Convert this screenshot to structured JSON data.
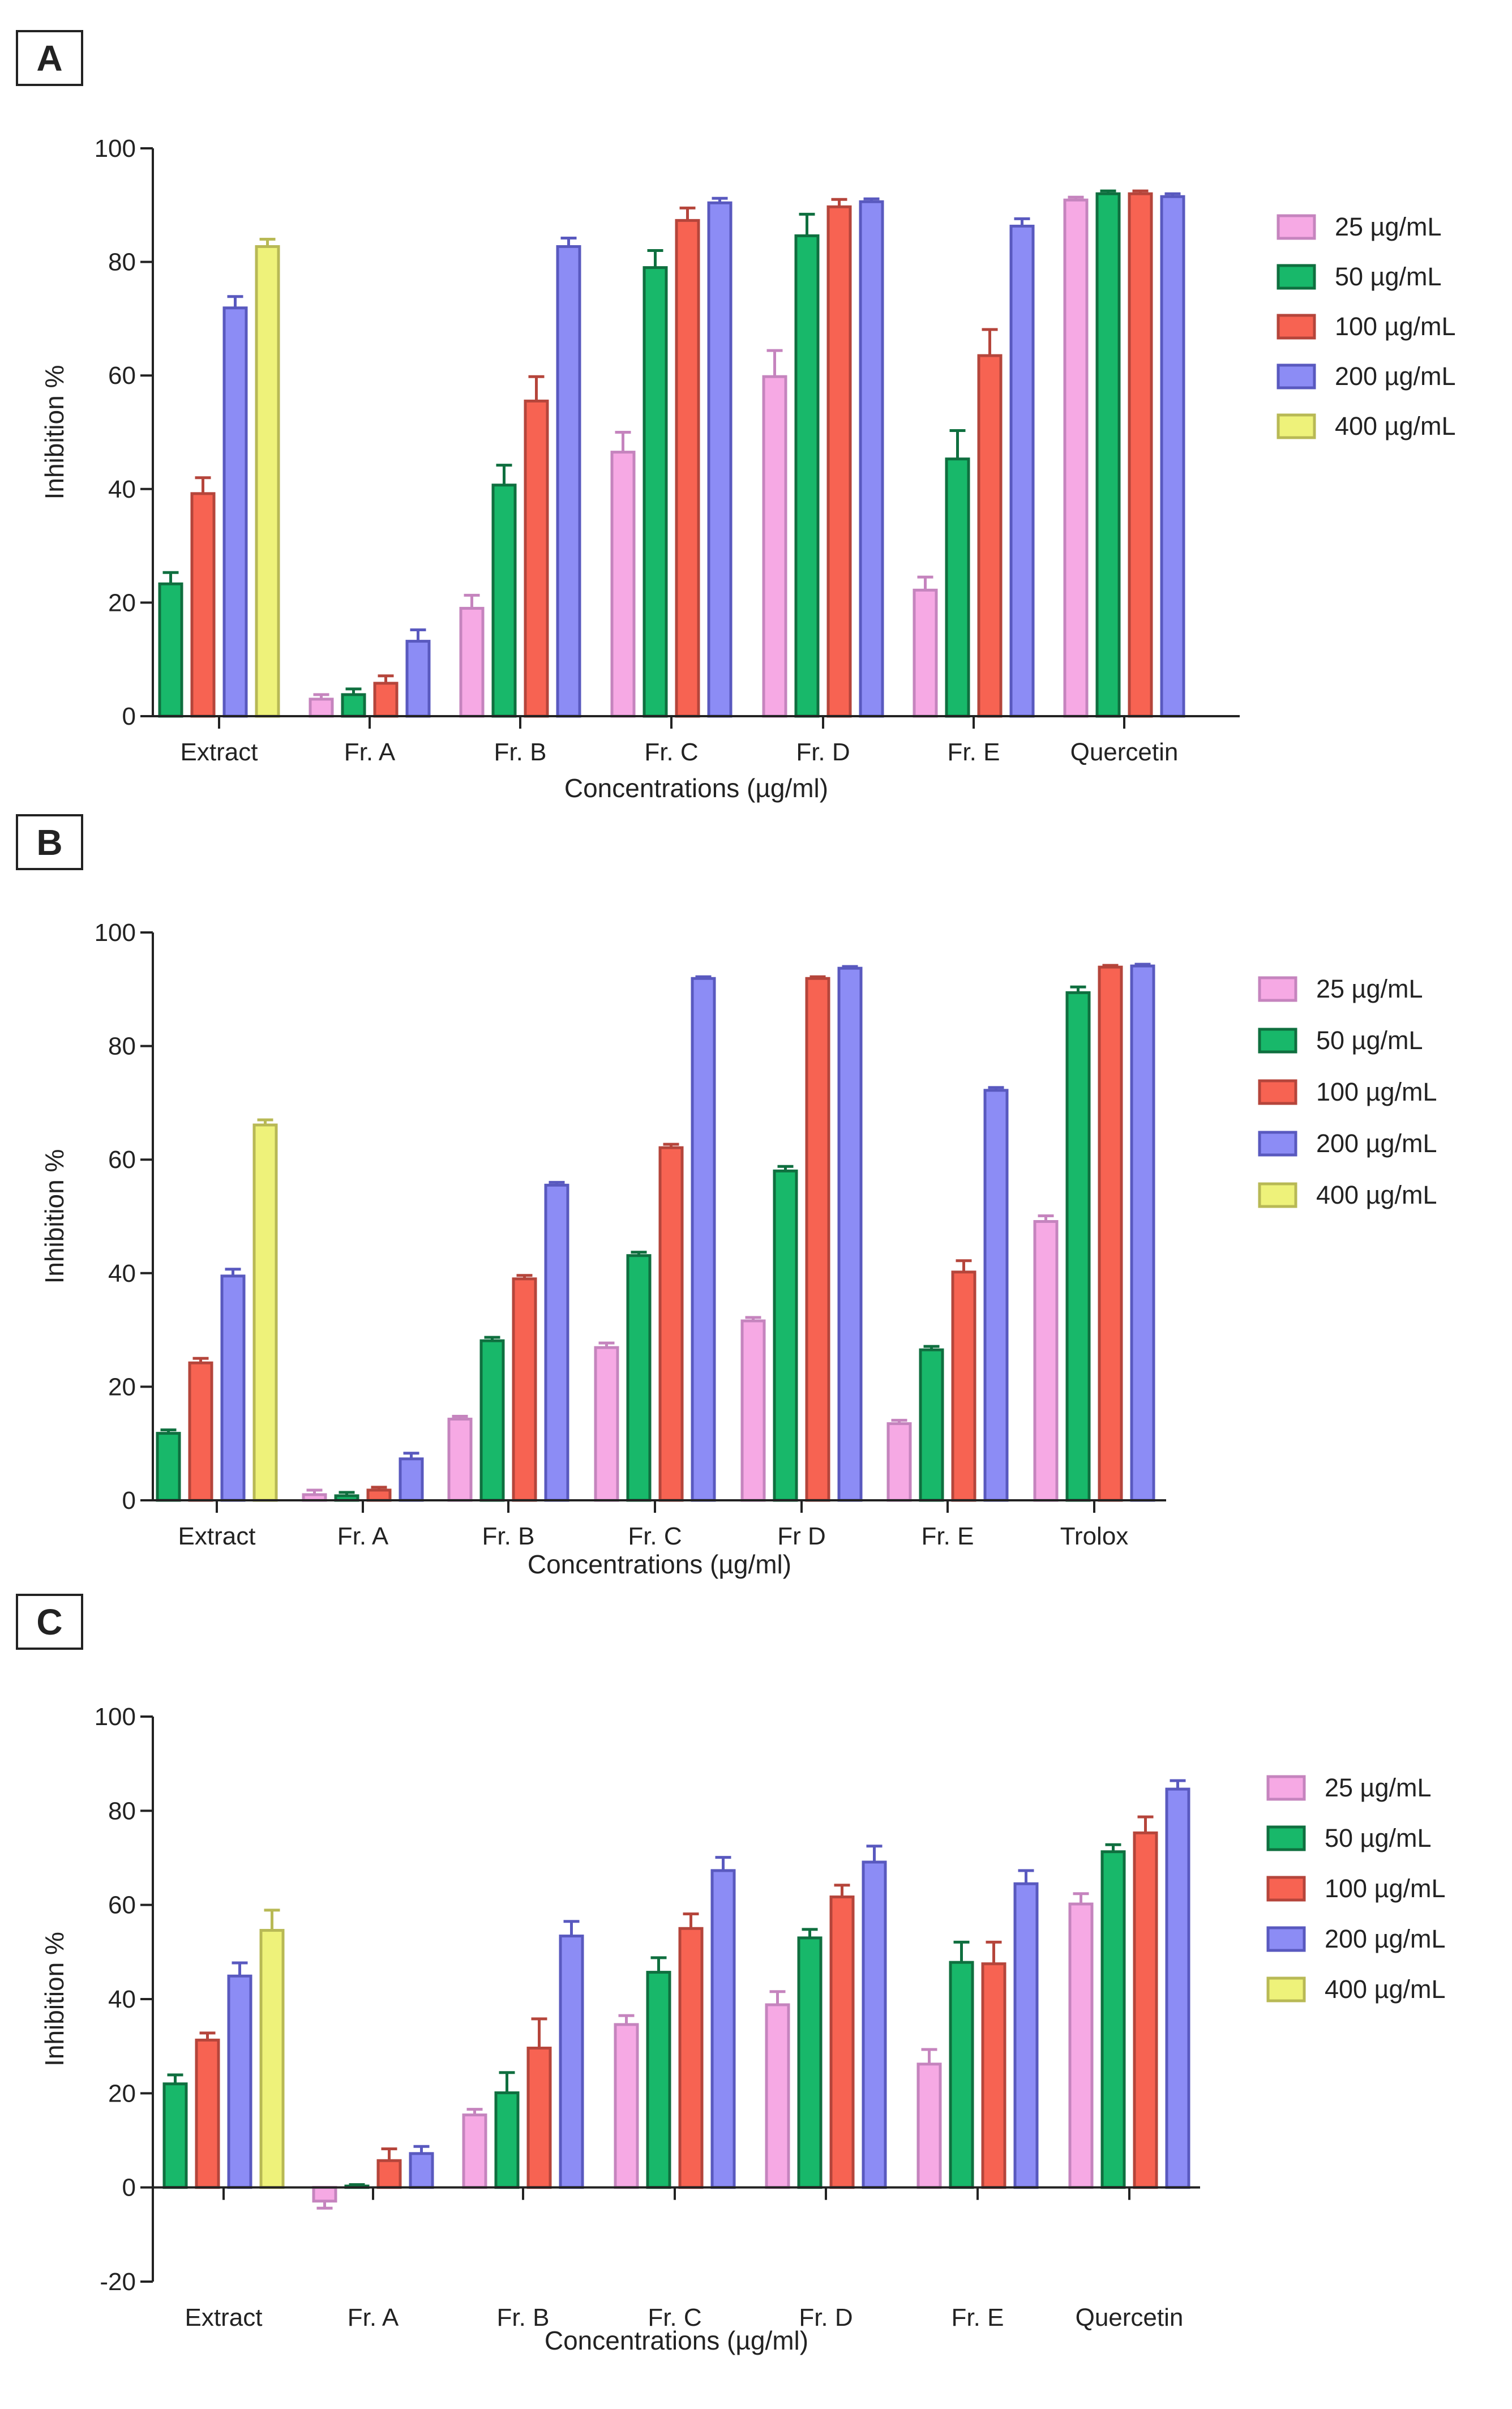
{
  "colors": {
    "25 µg/mL": {
      "fill": "#F6A9E4",
      "stroke": "#C584BE"
    },
    "50 µg/mL": {
      "fill": "#18B86A",
      "stroke": "#0F6F3F"
    },
    "100 µg/mL": {
      "fill": "#F76352",
      "stroke": "#B5453B"
    },
    "200 µg/mL": {
      "fill": "#8C8CF5",
      "stroke": "#5959BF"
    },
    "400 µg/mL": {
      "fill": "#EEF27A",
      "stroke": "#B8B955"
    }
  },
  "chart_data": [
    {
      "panel": "A",
      "type": "bar",
      "xlabel": "Concentrations (µg/ml)",
      "ylabel": "Inhibition %",
      "ylim": [
        0,
        100
      ],
      "yticks": [
        0,
        20,
        40,
        60,
        80,
        100
      ],
      "legend": [
        "25 µg/mL",
        "50 µg/mL",
        "100 µg/mL",
        "200 µg/mL",
        "400 µg/mL"
      ],
      "legend_position": "right",
      "categories": [
        {
          "name": "Extract",
          "bars": [
            {
              "s": "50 µg/mL",
              "v": 23.3,
              "e": 2.0
            },
            {
              "s": "100 µg/mL",
              "v": 39.2,
              "e": 2.8
            },
            {
              "s": "200 µg/mL",
              "v": 71.9,
              "e": 2.0
            },
            {
              "s": "400 µg/mL",
              "v": 82.7,
              "e": 1.3
            }
          ]
        },
        {
          "name": "Fr. A",
          "bars": [
            {
              "s": "25 µg/mL",
              "v": 3.0,
              "e": 0.8
            },
            {
              "s": "50 µg/mL",
              "v": 3.8,
              "e": 1.0
            },
            {
              "s": "100 µg/mL",
              "v": 5.8,
              "e": 1.3
            },
            {
              "s": "200 µg/mL",
              "v": 13.2,
              "e": 2.0
            }
          ]
        },
        {
          "name": "Fr. B",
          "bars": [
            {
              "s": "25 µg/mL",
              "v": 19.0,
              "e": 2.3
            },
            {
              "s": "50 µg/mL",
              "v": 40.7,
              "e": 3.5
            },
            {
              "s": "100 µg/mL",
              "v": 55.5,
              "e": 4.3
            },
            {
              "s": "200 µg/mL",
              "v": 82.7,
              "e": 1.5
            }
          ]
        },
        {
          "name": "Fr. C",
          "bars": [
            {
              "s": "25 µg/mL",
              "v": 46.5,
              "e": 3.5
            },
            {
              "s": "50 µg/mL",
              "v": 79.0,
              "e": 3.0
            },
            {
              "s": "100 µg/mL",
              "v": 87.3,
              "e": 2.2
            },
            {
              "s": "200 µg/mL",
              "v": 90.4,
              "e": 0.8
            }
          ]
        },
        {
          "name": "Fr. D",
          "bars": [
            {
              "s": "25 µg/mL",
              "v": 59.8,
              "e": 4.6
            },
            {
              "s": "50 µg/mL",
              "v": 84.6,
              "e": 3.8
            },
            {
              "s": "100 µg/mL",
              "v": 89.7,
              "e": 1.3
            },
            {
              "s": "200 µg/mL",
              "v": 90.6,
              "e": 0.5
            }
          ]
        },
        {
          "name": "Fr. E",
          "bars": [
            {
              "s": "25 µg/mL",
              "v": 22.2,
              "e": 2.3
            },
            {
              "s": "50 µg/mL",
              "v": 45.3,
              "e": 5.0
            },
            {
              "s": "100 µg/mL",
              "v": 63.5,
              "e": 4.6
            },
            {
              "s": "200 µg/mL",
              "v": 86.3,
              "e": 1.3
            }
          ]
        },
        {
          "name": "Quercetin",
          "bars": [
            {
              "s": "25 µg/mL",
              "v": 90.9,
              "e": 0.5
            },
            {
              "s": "50 µg/mL",
              "v": 92.0,
              "e": 0.5
            },
            {
              "s": "100 µg/mL",
              "v": 92.0,
              "e": 0.5
            },
            {
              "s": "200 µg/mL",
              "v": 91.5,
              "e": 0.5
            }
          ]
        }
      ]
    },
    {
      "panel": "B",
      "type": "bar",
      "xlabel": "Concentrations (µg/ml)",
      "ylabel": "Inhibition %",
      "ylim": [
        0,
        100
      ],
      "yticks": [
        0,
        20,
        40,
        60,
        80,
        100
      ],
      "legend": [
        "25 µg/mL",
        "50 µg/mL",
        "100 µg/mL",
        "200 µg/mL",
        "400 µg/mL"
      ],
      "legend_position": "right",
      "categories": [
        {
          "name": "Extract",
          "bars": [
            {
              "s": "50 µg/mL",
              "v": 11.8,
              "e": 0.6
            },
            {
              "s": "100 µg/mL",
              "v": 24.2,
              "e": 0.8
            },
            {
              "s": "200 µg/mL",
              "v": 39.5,
              "e": 1.2
            },
            {
              "s": "400 µg/mL",
              "v": 66.1,
              "e": 0.9
            }
          ]
        },
        {
          "name": "Fr. A",
          "bars": [
            {
              "s": "25 µg/mL",
              "v": 1.0,
              "e": 0.8
            },
            {
              "s": "50 µg/mL",
              "v": 0.8,
              "e": 0.6
            },
            {
              "s": "100 µg/mL",
              "v": 1.8,
              "e": 0.5
            },
            {
              "s": "200 µg/mL",
              "v": 7.3,
              "e": 1.0
            }
          ]
        },
        {
          "name": "Fr. B",
          "bars": [
            {
              "s": "25 µg/mL",
              "v": 14.3,
              "e": 0.5
            },
            {
              "s": "50 µg/mL",
              "v": 28.1,
              "e": 0.6
            },
            {
              "s": "100 µg/mL",
              "v": 39.0,
              "e": 0.6
            },
            {
              "s": "200 µg/mL",
              "v": 55.5,
              "e": 0.5
            }
          ]
        },
        {
          "name": "Fr. C",
          "bars": [
            {
              "s": "25 µg/mL",
              "v": 26.9,
              "e": 0.8
            },
            {
              "s": "50 µg/mL",
              "v": 43.1,
              "e": 0.6
            },
            {
              "s": "100 µg/mL",
              "v": 62.1,
              "e": 0.6
            },
            {
              "s": "200 µg/mL",
              "v": 91.9,
              "e": 0.3
            }
          ]
        },
        {
          "name": "Fr D",
          "bars": [
            {
              "s": "25 µg/mL",
              "v": 31.6,
              "e": 0.6
            },
            {
              "s": "50 µg/mL",
              "v": 58.0,
              "e": 0.8
            },
            {
              "s": "100 µg/mL",
              "v": 91.9,
              "e": 0.3
            },
            {
              "s": "200 µg/mL",
              "v": 93.7,
              "e": 0.3
            }
          ]
        },
        {
          "name": "Fr. E",
          "bars": [
            {
              "s": "25 µg/mL",
              "v": 13.5,
              "e": 0.6
            },
            {
              "s": "50 µg/mL",
              "v": 26.5,
              "e": 0.6
            },
            {
              "s": "100 µg/mL",
              "v": 40.2,
              "e": 2.0
            },
            {
              "s": "200 µg/mL",
              "v": 72.2,
              "e": 0.5
            }
          ]
        },
        {
          "name": "Trolox",
          "bars": [
            {
              "s": "25 µg/mL",
              "v": 49.1,
              "e": 1.0
            },
            {
              "s": "50 µg/mL",
              "v": 89.4,
              "e": 1.0
            },
            {
              "s": "100 µg/mL",
              "v": 93.9,
              "e": 0.3
            },
            {
              "s": "200 µg/mL",
              "v": 94.1,
              "e": 0.3
            }
          ]
        }
      ]
    },
    {
      "panel": "C",
      "type": "bar",
      "xlabel": "Concentrations (µg/ml)",
      "ylabel": "Inhibition %",
      "ylim": [
        -20,
        100
      ],
      "yticks": [
        -20,
        0,
        20,
        40,
        60,
        80,
        100
      ],
      "legend": [
        "25 µg/mL",
        "50 µg/mL",
        "100 µg/mL",
        "200 µg/mL",
        "400 µg/mL"
      ],
      "legend_position": "right",
      "categories": [
        {
          "name": "Extract",
          "bars": [
            {
              "s": "50 µg/mL",
              "v": 22.0,
              "e": 1.9
            },
            {
              "s": "100 µg/mL",
              "v": 31.3,
              "e": 1.5
            },
            {
              "s": "200 µg/mL",
              "v": 44.9,
              "e": 2.8
            },
            {
              "s": "400 µg/mL",
              "v": 54.6,
              "e": 4.3
            }
          ]
        },
        {
          "name": "Fr. A",
          "bars": [
            {
              "s": "25 µg/mL",
              "v": -2.9,
              "e": 1.5
            },
            {
              "s": "50 µg/mL",
              "v": 0.3,
              "e": 0.3
            },
            {
              "s": "100 µg/mL",
              "v": 5.7,
              "e": 2.5
            },
            {
              "s": "200 µg/mL",
              "v": 7.2,
              "e": 1.5
            }
          ]
        },
        {
          "name": "Fr. B",
          "bars": [
            {
              "s": "25 µg/mL",
              "v": 15.4,
              "e": 1.2
            },
            {
              "s": "50 µg/mL",
              "v": 20.1,
              "e": 4.3
            },
            {
              "s": "100 µg/mL",
              "v": 29.6,
              "e": 6.2
            },
            {
              "s": "200 µg/mL",
              "v": 53.4,
              "e": 3.1
            }
          ]
        },
        {
          "name": "Fr. C",
          "bars": [
            {
              "s": "25 µg/mL",
              "v": 34.6,
              "e": 1.9
            },
            {
              "s": "50 µg/mL",
              "v": 45.7,
              "e": 3.1
            },
            {
              "s": "100 µg/mL",
              "v": 55.0,
              "e": 3.1
            },
            {
              "s": "200 µg/mL",
              "v": 67.3,
              "e": 2.8
            }
          ]
        },
        {
          "name": "Fr. D",
          "bars": [
            {
              "s": "25 µg/mL",
              "v": 38.8,
              "e": 2.8
            },
            {
              "s": "50 µg/mL",
              "v": 53.0,
              "e": 1.8
            },
            {
              "s": "100 µg/mL",
              "v": 61.7,
              "e": 2.5
            },
            {
              "s": "200 µg/mL",
              "v": 69.1,
              "e": 3.4
            }
          ]
        },
        {
          "name": "Fr. E",
          "bars": [
            {
              "s": "25 µg/mL",
              "v": 26.2,
              "e": 3.1
            },
            {
              "s": "50 µg/mL",
              "v": 47.8,
              "e": 4.3
            },
            {
              "s": "100 µg/mL",
              "v": 47.5,
              "e": 4.6
            },
            {
              "s": "200 µg/mL",
              "v": 64.5,
              "e": 2.8
            }
          ]
        },
        {
          "name": "Quercetin",
          "bars": [
            {
              "s": "25 µg/mL",
              "v": 60.2,
              "e": 2.2
            },
            {
              "s": "50 µg/mL",
              "v": 71.3,
              "e": 1.5
            },
            {
              "s": "100 µg/mL",
              "v": 75.3,
              "e": 3.4
            },
            {
              "s": "200 µg/mL",
              "v": 84.6,
              "e": 1.8
            }
          ]
        }
      ]
    }
  ]
}
